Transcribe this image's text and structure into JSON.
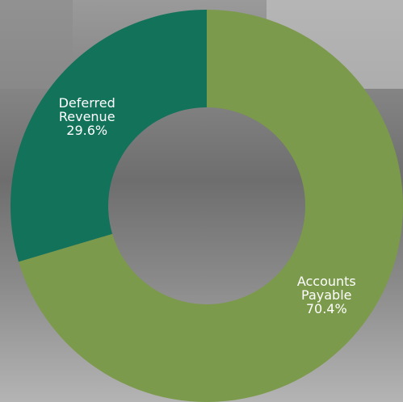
{
  "chart_data": {
    "type": "donut",
    "categories": [
      "Accounts Payable",
      "Deferred Revenue"
    ],
    "values": [
      70.4,
      29.6
    ],
    "value_labels": [
      "70.4%",
      "29.6%"
    ],
    "colors": [
      "#7b9a4b",
      "#12725a"
    ]
  }
}
